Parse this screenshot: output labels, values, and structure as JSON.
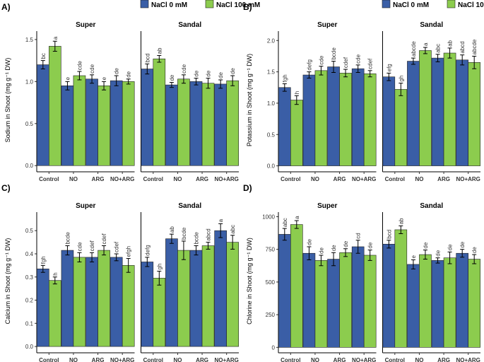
{
  "legend": {
    "series": [
      {
        "name": "NaCl 0 mM",
        "color": "#3a5ea6"
      },
      {
        "name": "NaCl 100 mM",
        "color": "#8ccc4e"
      }
    ]
  },
  "chart_data": [
    {
      "type": "bar",
      "panel": "A)",
      "ylabel": "Sodium in Shoot (mg g⁻¹ DW)",
      "ylim": [
        -0.04,
        1.6
      ],
      "yticks": [
        {
          "value": 0,
          "label": "0.0"
        },
        0.5,
        {
          "value": 1,
          "label": "1.0"
        },
        1.5
      ],
      "categories": [
        "Control",
        "NO",
        "ARG",
        "NO+ARG"
      ],
      "show_legend": true,
      "facets": [
        {
          "title": "Super",
          "series": [
            {
              "values": [
                1.2,
                0.95,
                1.03,
                1.01
              ],
              "errors": [
                0.05,
                0.05,
                0.05,
                0.06
              ],
              "letters": [
                "bc",
                "e",
                "cde",
                "de"
              ]
            },
            {
              "values": [
                1.42,
                1.07,
                0.95,
                1.0
              ],
              "errors": [
                0.06,
                0.05,
                0.05,
                0.03
              ],
              "letters": [
                "a",
                "cde",
                "e",
                "de"
              ]
            }
          ]
        },
        {
          "title": "Sandal",
          "series": [
            {
              "values": [
                1.15,
                0.96,
                1.0,
                0.97
              ],
              "errors": [
                0.06,
                0.03,
                0.04,
                0.05
              ],
              "letters": [
                "bcd",
                "de",
                "de",
                "de"
              ]
            },
            {
              "values": [
                1.27,
                1.03,
                0.98,
                1.01
              ],
              "errors": [
                0.04,
                0.05,
                0.06,
                0.06
              ],
              "letters": [
                "ab",
                "cde",
                "de",
                "de"
              ]
            }
          ]
        }
      ]
    },
    {
      "type": "bar",
      "panel": "B)",
      "ylabel": "Potassium in Shoot (mg g⁻¹ DW)",
      "ylim": [
        -0.05,
        2.15
      ],
      "yticks": [
        {
          "value": 0,
          "label": "0.0"
        },
        0.5,
        {
          "value": 1,
          "label": "1.0"
        },
        1.5,
        {
          "value": 2,
          "label": "2.0"
        }
      ],
      "categories": [
        "Control",
        "NO",
        "ARG",
        "NO+ARG"
      ],
      "show_legend": true,
      "facets": [
        {
          "title": "Super",
          "series": [
            {
              "values": [
                1.25,
                1.45,
                1.58,
                1.55
              ],
              "errors": [
                0.06,
                0.05,
                0.09,
                0.06
              ],
              "letters": [
                "fgh",
                "defg",
                "bcde",
                "cde"
              ]
            },
            {
              "values": [
                1.05,
                1.52,
                1.48,
                1.47
              ],
              "errors": [
                0.07,
                0.07,
                0.06,
                0.05
              ],
              "letters": [
                "h",
                "cde",
                "cdef",
                "cdef"
              ]
            }
          ]
        },
        {
          "title": "Sandal",
          "series": [
            {
              "values": [
                1.42,
                1.67,
                1.72,
                1.69
              ],
              "errors": [
                0.06,
                0.05,
                0.06,
                0.08
              ],
              "letters": [
                "efg",
                "abcde",
                "abc",
                "abcd"
              ]
            },
            {
              "values": [
                1.22,
                1.84,
                1.8,
                1.65
              ],
              "errors": [
                0.1,
                0.05,
                0.08,
                0.1
              ],
              "letters": [
                "gh",
                "a",
                "ab",
                "abcde"
              ]
            }
          ]
        }
      ]
    },
    {
      "type": "bar",
      "panel": "C)",
      "ylabel": "Calcium in Shoot (mg g⁻¹ DW)",
      "ylim": [
        -0.015,
        0.58
      ],
      "yticks": [
        {
          "value": 0,
          "label": "0.0"
        },
        0.1,
        0.2,
        0.3,
        0.4,
        0.5
      ],
      "categories": [
        "Control",
        "NO",
        "ARG",
        "NO+ARG"
      ],
      "show_legend": false,
      "facets": [
        {
          "title": "Super",
          "series": [
            {
              "values": [
                0.335,
                0.415,
                0.385,
                0.385
              ],
              "errors": [
                0.015,
                0.02,
                0.02,
                0.015
              ],
              "letters": [
                "fgh",
                "bcde",
                "cdef",
                "cdef"
              ]
            },
            {
              "values": [
                0.285,
                0.385,
                0.415,
                0.35
              ],
              "errors": [
                0.015,
                0.02,
                0.02,
                0.03
              ],
              "letters": [
                "h",
                "cde",
                "cdef",
                "efgh"
              ]
            }
          ]
        },
        {
          "title": "Sandal",
          "series": [
            {
              "values": [
                0.365,
                0.465,
                0.415,
                0.5
              ],
              "errors": [
                0.02,
                0.02,
                0.02,
                0.03
              ],
              "letters": [
                "defg",
                "ab",
                "bcde",
                "a"
              ]
            },
            {
              "values": [
                0.295,
                0.415,
                0.435,
                0.45
              ],
              "errors": [
                0.03,
                0.04,
                0.015,
                0.03
              ],
              "letters": [
                "gh",
                "bcde",
                "abcd",
                "abc"
              ]
            }
          ]
        }
      ]
    },
    {
      "type": "bar",
      "panel": "D)",
      "ylabel": "Chlorine in Shoot (mg g⁻¹ DW)",
      "ylim": [
        -20,
        1035
      ],
      "yticks": [
        0,
        250,
        500,
        750,
        1000
      ],
      "categories": [
        "Control",
        "NO",
        "ARG",
        "NO+ARG"
      ],
      "show_legend": false,
      "facets": [
        {
          "title": "Super",
          "series": [
            {
              "values": [
                865,
                720,
                675,
                770
              ],
              "errors": [
                45,
                50,
                50,
                50
              ],
              "letters": [
                "abc",
                "de",
                "de",
                "cd"
              ]
            },
            {
              "values": [
                940,
                665,
                725,
                705
              ],
              "errors": [
                30,
                40,
                30,
                40
              ],
              "letters": [
                "a",
                "de",
                "de",
                "de"
              ]
            }
          ]
        },
        {
          "title": "Sandal",
          "series": [
            {
              "values": [
                790,
                635,
                665,
                720
              ],
              "errors": [
                30,
                35,
                20,
                30
              ],
              "letters": [
                "bcd",
                "e",
                "de",
                "de"
              ]
            },
            {
              "values": [
                900,
                710,
                685,
                675
              ],
              "errors": [
                30,
                35,
                45,
                35
              ],
              "letters": [
                "ab",
                "de",
                "de",
                "de"
              ]
            }
          ]
        }
      ]
    }
  ]
}
